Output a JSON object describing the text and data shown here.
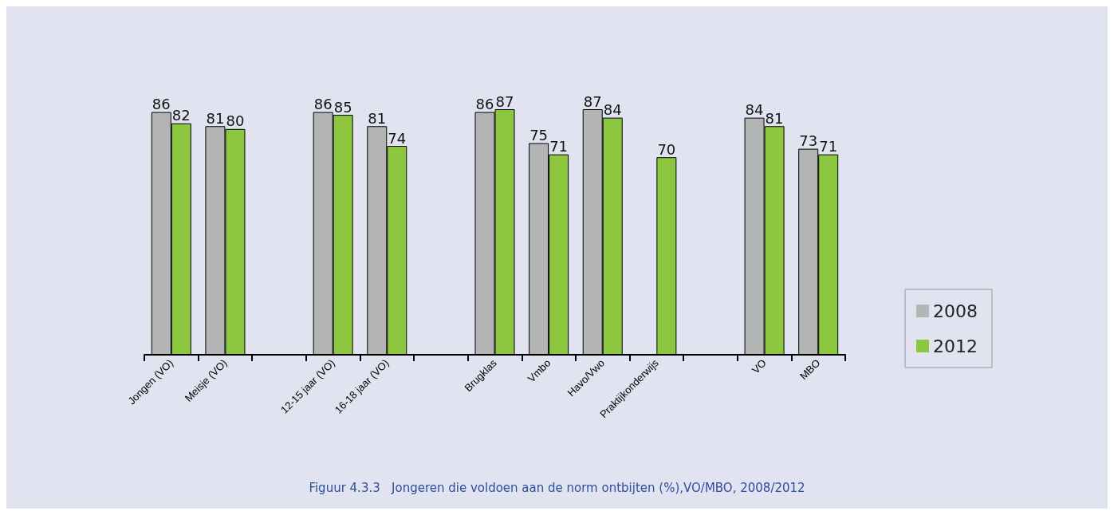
{
  "chart_data": {
    "type": "bar",
    "title": "Figuur 4.3.3   Jongeren die voldoen aan de norm ontbijten (%),VO/MBO, 2008/2012",
    "categories": [
      "Jongen (VO)",
      "Meisje (VO)",
      null,
      "12-15 jaar (VO)",
      "16-18 jaar (VO)",
      null,
      "Brugklas",
      "Vmbo",
      "Havo/Vwo",
      "Praktijkonderwijs",
      null,
      "VO",
      "MBO"
    ],
    "series": [
      {
        "name": "2008",
        "color": "#b3b5b5",
        "values": [
          86,
          81,
          null,
          86,
          81,
          null,
          86,
          75,
          87,
          null,
          null,
          84,
          73
        ]
      },
      {
        "name": "2012",
        "color": "#8dc63f",
        "values": [
          82,
          80,
          null,
          85,
          74,
          null,
          87,
          71,
          84,
          70,
          null,
          81,
          71
        ]
      }
    ],
    "data_labels": true,
    "grid": false,
    "legend": "right"
  }
}
